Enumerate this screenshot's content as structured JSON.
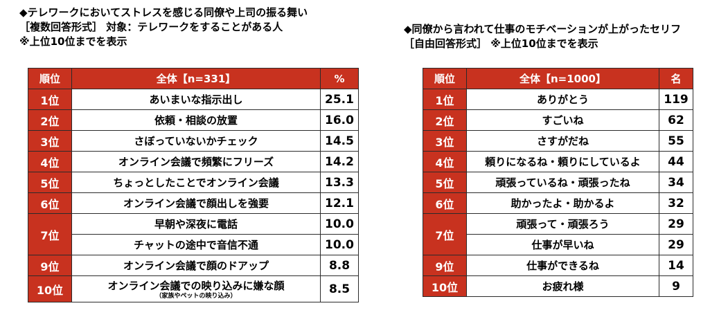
{
  "left": {
    "title_lines": [
      "◆テレワークにおいてストレスを感じる同僚や上司の振る舞い",
      "［複数回答形式］ 対象：テレワークをすることがある人",
      "※上位10位までを表示"
    ],
    "headers": [
      "順位",
      "全体【n=331】",
      "%"
    ],
    "rows": [
      {
        "rank": "1位",
        "item": "あいまいな指示出し",
        "value": "25.1"
      },
      {
        "rank": "2位",
        "item": "依頼・相談の放置",
        "value": "16.0"
      },
      {
        "rank": "3位",
        "item": "さぼっていないかチェック",
        "value": "14.5"
      },
      {
        "rank": "4位",
        "item": "オンライン会議で頻繁にフリーズ",
        "value": "14.2"
      },
      {
        "rank": "5位",
        "item": "ちょっとしたことでオンライン会議",
        "value": "13.3"
      },
      {
        "rank": "6位",
        "item": "オンライン会議で顔出しを強要",
        "value": "12.1"
      },
      {
        "rank": "7位",
        "item": "早朝や深夜に電話",
        "value": "10.0"
      },
      {
        "rank": "",
        "item": "チャットの途中で音信不通",
        "value": "10.0"
      },
      {
        "rank": "9位",
        "item": "オンライン会議で顔のドアップ",
        "value": "8.8"
      },
      {
        "rank": "10位",
        "item": "オンライン会議での映り込みに嫌な顔",
        "note": "（家族やペットの映り込み）",
        "value": "8.5"
      }
    ]
  },
  "right": {
    "title_lines": [
      "◆同僚から言われて仕事のモチベーションが上がったセリフ",
      "［自由回答形式］ ※上位10位までを表示"
    ],
    "headers": [
      "順位",
      "全体【n=1000】",
      "名"
    ],
    "rows": [
      {
        "rank": "1位",
        "item": "ありがとう",
        "value": "119"
      },
      {
        "rank": "2位",
        "item": "すごいね",
        "value": "62"
      },
      {
        "rank": "3位",
        "item": "さすがだね",
        "value": "55"
      },
      {
        "rank": "4位",
        "item": "頼りになるね・頼りにしているよ",
        "value": "44"
      },
      {
        "rank": "5位",
        "item": "頑張っているね・頑張ったね",
        "value": "34"
      },
      {
        "rank": "6位",
        "item": "助かったよ・助かるよ",
        "value": "32"
      },
      {
        "rank": "7位",
        "item": "頑張って・頑張ろう",
        "value": "29"
      },
      {
        "rank": "",
        "item": "仕事が早いね",
        "value": "29"
      },
      {
        "rank": "9位",
        "item": "仕事ができるね",
        "value": "14"
      },
      {
        "rank": "10位",
        "item": "お疲れ様",
        "value": "9"
      }
    ]
  }
}
